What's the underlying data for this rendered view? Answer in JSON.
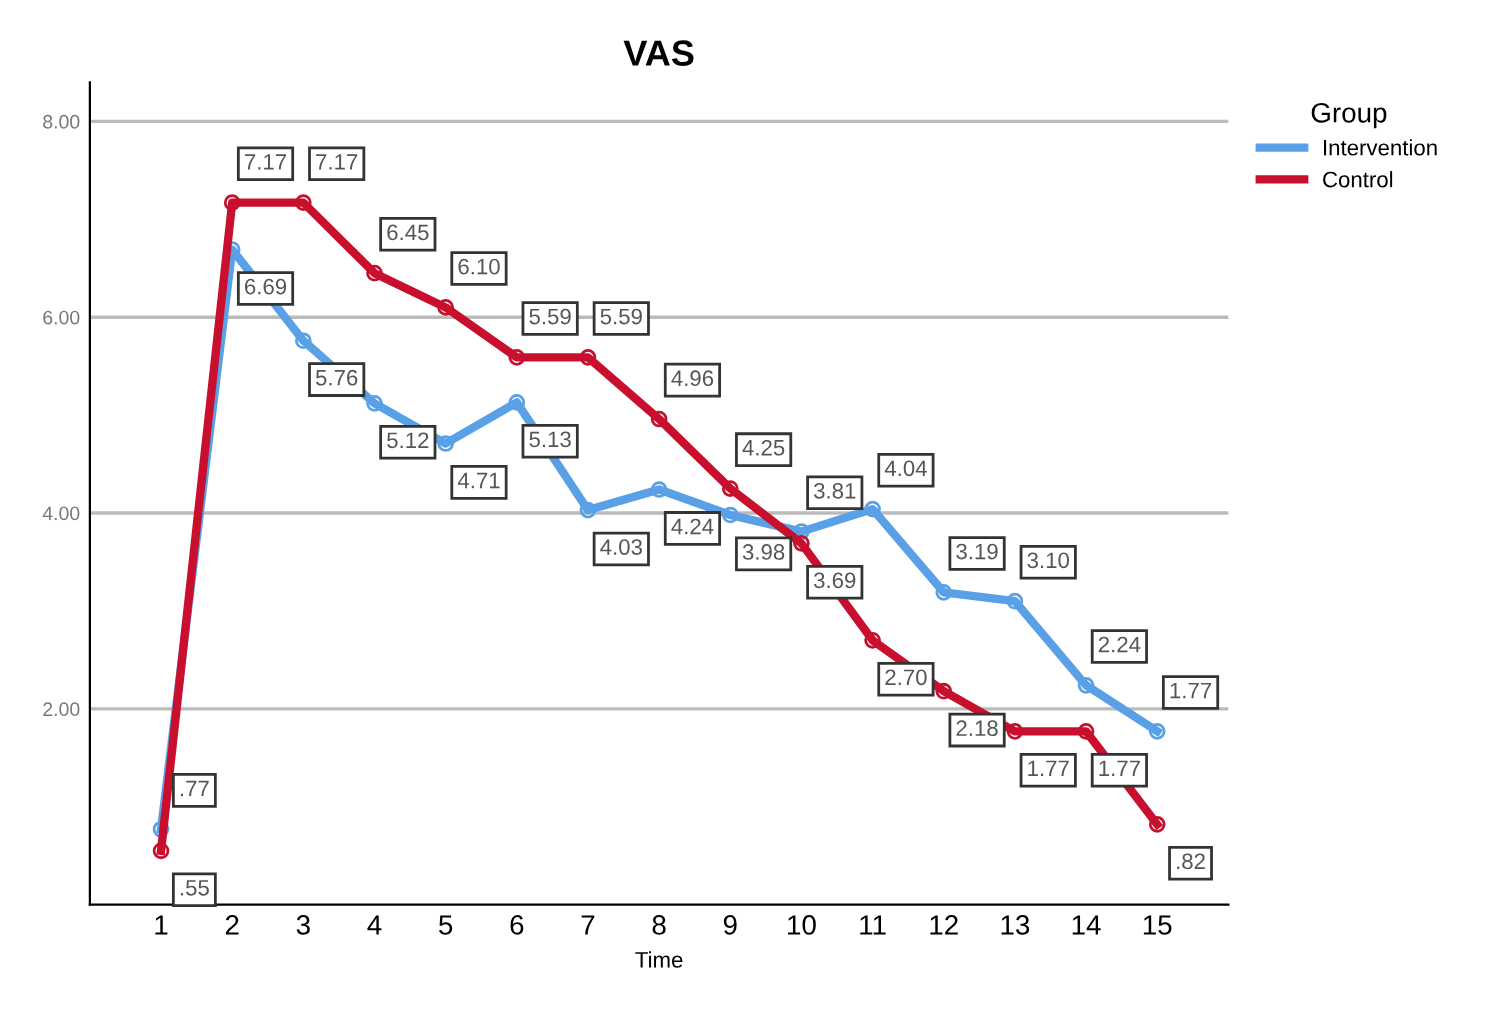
{
  "chart_data": {
    "type": "line",
    "title": "VAS",
    "xlabel": "Time",
    "legend_title": "Group",
    "categories": [
      "1",
      "2",
      "3",
      "4",
      "5",
      "6",
      "7",
      "8",
      "9",
      "10",
      "11",
      "12",
      "13",
      "14",
      "15"
    ],
    "series": [
      {
        "name": "Intervention",
        "color": "#5aa0e6",
        "values": [
          0.77,
          6.69,
          5.76,
          5.12,
          4.71,
          5.13,
          4.03,
          4.24,
          3.98,
          3.81,
          4.04,
          3.19,
          3.1,
          2.24,
          1.77
        ],
        "value_labels": [
          ".77",
          "6.69",
          "5.76",
          "5.12",
          "4.71",
          "5.13",
          "4.03",
          "4.24",
          "3.98",
          "3.81",
          "4.04",
          "3.19",
          "3.10",
          "2.24",
          "1.77"
        ]
      },
      {
        "name": "Control",
        "color": "#c8102e",
        "values": [
          0.55,
          7.17,
          7.17,
          6.45,
          6.1,
          5.59,
          5.59,
          4.96,
          4.25,
          3.69,
          2.7,
          2.18,
          1.77,
          1.77,
          0.82
        ],
        "value_labels": [
          ".55",
          "7.17",
          "7.17",
          "6.45",
          "6.10",
          "5.59",
          "5.59",
          "4.96",
          "4.25",
          "3.69",
          "2.70",
          "2.18",
          "1.77",
          "1.77",
          ".82"
        ]
      }
    ],
    "ylim": [
      0,
      8.4
    ],
    "yticks": [
      {
        "value": 2,
        "label": "2.00"
      },
      {
        "value": 4,
        "label": "4.00"
      },
      {
        "value": 6,
        "label": "6.00"
      },
      {
        "value": 8,
        "label": "8.00"
      }
    ],
    "grid": "y",
    "legend": "top right",
    "marker": "circle",
    "line_style": "solid"
  }
}
